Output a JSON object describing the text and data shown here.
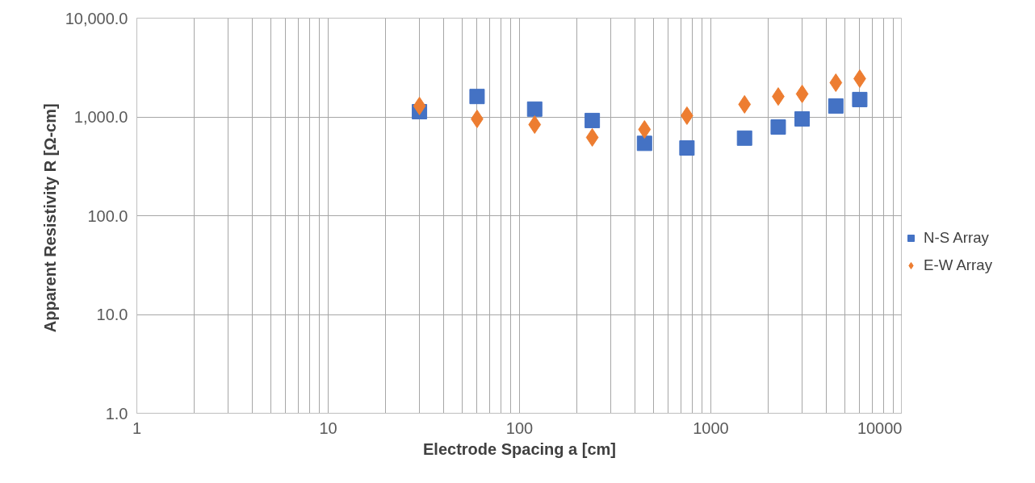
{
  "chart_data": {
    "type": "scatter",
    "xlabel": "Electrode Spacing a [cm]",
    "ylabel": "Apparent Resistivity  R [Ω-cm]",
    "log": "xy",
    "grid": true,
    "legend": "right",
    "xlim": [
      1,
      10000
    ],
    "ylim": [
      1,
      10000
    ],
    "xticks": [
      1,
      {
        "value": 2,
        "label": null
      },
      {
        "value": 3,
        "label": null
      },
      {
        "value": 4,
        "label": null
      },
      {
        "value": 5,
        "label": null
      },
      {
        "value": 6,
        "label": null
      },
      {
        "value": 7,
        "label": null
      },
      {
        "value": 8,
        "label": null
      },
      {
        "value": 9,
        "label": null
      },
      10,
      {
        "value": 20,
        "label": null
      },
      {
        "value": 30,
        "label": null
      },
      {
        "value": 40,
        "label": null
      },
      {
        "value": 50,
        "label": null
      },
      {
        "value": 60,
        "label": null
      },
      {
        "value": 70,
        "label": null
      },
      {
        "value": 80,
        "label": null
      },
      {
        "value": 90,
        "label": null
      },
      100,
      {
        "value": 200,
        "label": null
      },
      {
        "value": 300,
        "label": null
      },
      {
        "value": 400,
        "label": null
      },
      {
        "value": 500,
        "label": null
      },
      {
        "value": 600,
        "label": null
      },
      {
        "value": 700,
        "label": null
      },
      {
        "value": 800,
        "label": null
      },
      {
        "value": 900,
        "label": null
      },
      1000,
      {
        "value": 2000,
        "label": null
      },
      {
        "value": 3000,
        "label": null
      },
      {
        "value": 4000,
        "label": null
      },
      {
        "value": 5000,
        "label": null
      },
      {
        "value": 6000,
        "label": null
      },
      {
        "value": 7000,
        "label": null
      },
      {
        "value": 8000,
        "label": null
      },
      {
        "value": 9000,
        "label": null
      },
      10000
    ],
    "yticks": [
      {
        "value": 1,
        "label": "1.0"
      },
      {
        "value": 10,
        "label": "10.0"
      },
      {
        "value": 100,
        "label": "100.0"
      },
      {
        "value": 1000,
        "label": "1,000.0"
      },
      {
        "value": 10000,
        "label": "10,000.0"
      }
    ],
    "x": [
      30,
      60,
      120,
      240,
      450,
      750,
      1500,
      2250,
      3000,
      4500,
      6000
    ],
    "series": [
      {
        "name": "N-S Array",
        "color": "#4472c4",
        "marker": "square",
        "values": [
          1130,
          1610,
          1200,
          920,
          540,
          485,
          610,
          790,
          955,
          1290,
          1500
        ]
      },
      {
        "name": "E-W Array",
        "color": "#ed7d31",
        "marker": "diamond",
        "values": [
          1290,
          955,
          836,
          620,
          747,
          1030,
          1340,
          1610,
          1710,
          2220,
          2440
        ]
      }
    ]
  }
}
